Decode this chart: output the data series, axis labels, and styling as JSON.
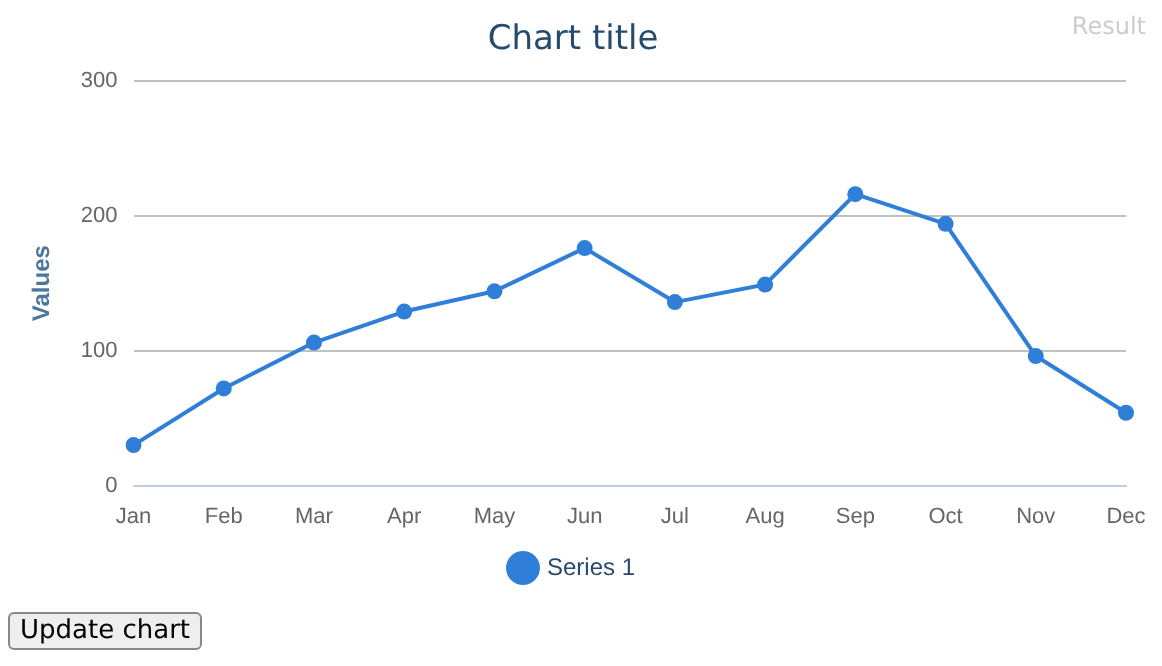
{
  "chart_data": {
    "type": "line",
    "title": "Chart title",
    "ylabel": "Values",
    "categories": [
      "Jan",
      "Feb",
      "Mar",
      "Apr",
      "May",
      "Jun",
      "Jul",
      "Aug",
      "Sep",
      "Oct",
      "Nov",
      "Dec"
    ],
    "series": [
      {
        "name": "Series 1",
        "color": "#2f7ed8",
        "values": [
          30,
          72,
          106,
          129,
          144,
          176,
          136,
          149,
          216,
          194,
          96,
          54
        ]
      }
    ],
    "ylim": [
      0,
      300
    ],
    "yticks": [
      0,
      100,
      200,
      300
    ],
    "grid": "y",
    "legend": "bottom",
    "marker": "circle",
    "line_style": "solid",
    "annotations": [
      "Result",
      "Update chart"
    ]
  }
}
